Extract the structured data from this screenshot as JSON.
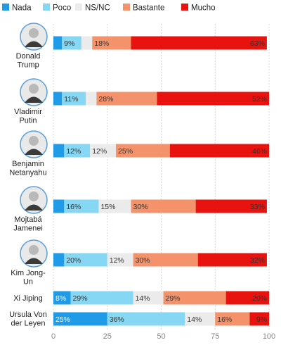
{
  "colors": {
    "nada": "#1f9be8",
    "poco": "#86d7f3",
    "nsnc": "#ebebeb",
    "bastante": "#f4936b",
    "mucho": "#e8130f",
    "tick_text": "#888888",
    "label_text": "#222222",
    "avatar_bg": "#e9e9e9",
    "avatar_ring": "#5aa0d8"
  },
  "chart_data": {
    "type": "bar",
    "orientation": "horizontal",
    "stacked": true,
    "legend_placement": "top-left",
    "grid": true,
    "xlim": [
      0,
      100
    ],
    "ticks": [
      0,
      25,
      50,
      75,
      100
    ],
    "categories": [
      [
        "Donald",
        "Trump"
      ],
      [
        "Vladimir",
        "Putin"
      ],
      [
        "Benjamin",
        "Netanyahu"
      ],
      [
        "Mojtabá",
        "Jamenei"
      ],
      [
        "Kim Jong-",
        "Un"
      ],
      [
        "Xi Jiping"
      ],
      [
        "Ursula Von",
        "der Leyen"
      ]
    ],
    "has_photo": [
      true,
      true,
      true,
      true,
      true,
      false,
      false
    ],
    "series": [
      {
        "name": "Nada",
        "key": "nada",
        "values": [
          4,
          4,
          5,
          5,
          5,
          8,
          25
        ],
        "labels": [
          "",
          "",
          "",
          "",
          "",
          "8%",
          "25%"
        ]
      },
      {
        "name": "Poco",
        "key": "poco",
        "values": [
          9,
          11,
          12,
          16,
          20,
          29,
          36
        ],
        "labels": [
          "9%",
          "11%",
          "12%",
          "16%",
          "20%",
          "29%",
          "36%"
        ]
      },
      {
        "name": "NS/NC",
        "key": "nsnc",
        "values": [
          5,
          5,
          12,
          15,
          12,
          14,
          14
        ],
        "labels": [
          "",
          "",
          "12%",
          "15%",
          "12%",
          "14%",
          "14%"
        ]
      },
      {
        "name": "Bastante",
        "key": "bastante",
        "values": [
          18,
          28,
          25,
          30,
          30,
          29,
          16
        ],
        "labels": [
          "18%",
          "28%",
          "25%",
          "30%",
          "30%",
          "29%",
          "16%"
        ]
      },
      {
        "name": "Mucho",
        "key": "mucho",
        "values": [
          63,
          52,
          46,
          33,
          32,
          20,
          9
        ],
        "labels": [
          "63%",
          "52%",
          "46%",
          "33%",
          "32%",
          "20%",
          "9%"
        ]
      }
    ]
  }
}
